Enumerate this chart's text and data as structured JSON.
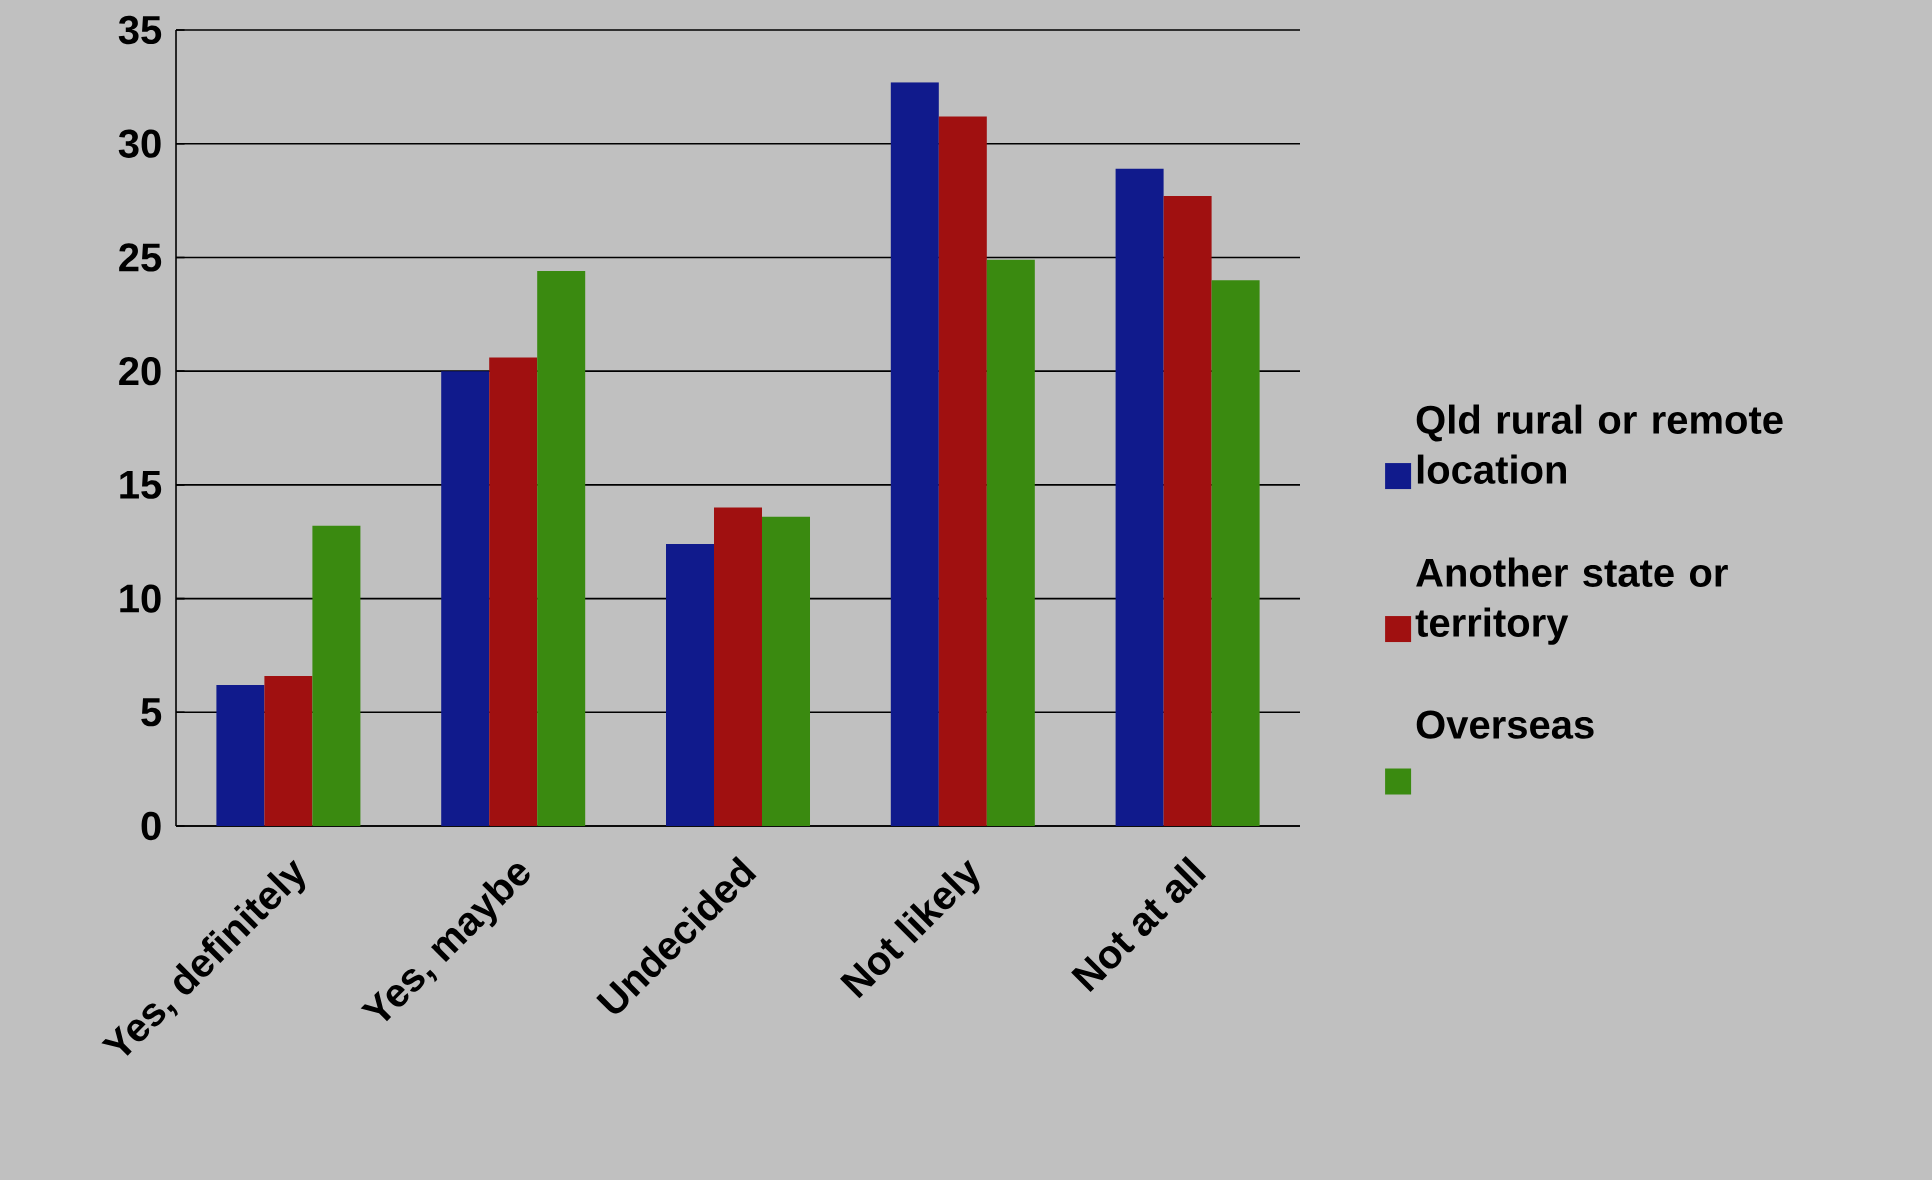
{
  "chart_data": {
    "type": "bar",
    "categories": [
      "Yes, definitely",
      "Yes, maybe",
      "Undecided",
      "Not likely",
      "Not at all"
    ],
    "series": [
      {
        "name": "Qld rural or remote location",
        "color": "#101a8c",
        "values": [
          6.2,
          20.0,
          12.4,
          32.7,
          28.9
        ]
      },
      {
        "name": "Another state or territory",
        "color": "#a01010",
        "values": [
          6.6,
          20.6,
          14.0,
          31.2,
          27.7
        ]
      },
      {
        "name": "Overseas",
        "color": "#3a8a10",
        "values": [
          13.2,
          24.4,
          13.6,
          24.9,
          24.0
        ]
      }
    ],
    "ylim": [
      0,
      35
    ],
    "yticks": [
      0,
      5,
      10,
      15,
      20,
      25,
      30,
      35
    ],
    "grid": "y",
    "legend": "right"
  }
}
